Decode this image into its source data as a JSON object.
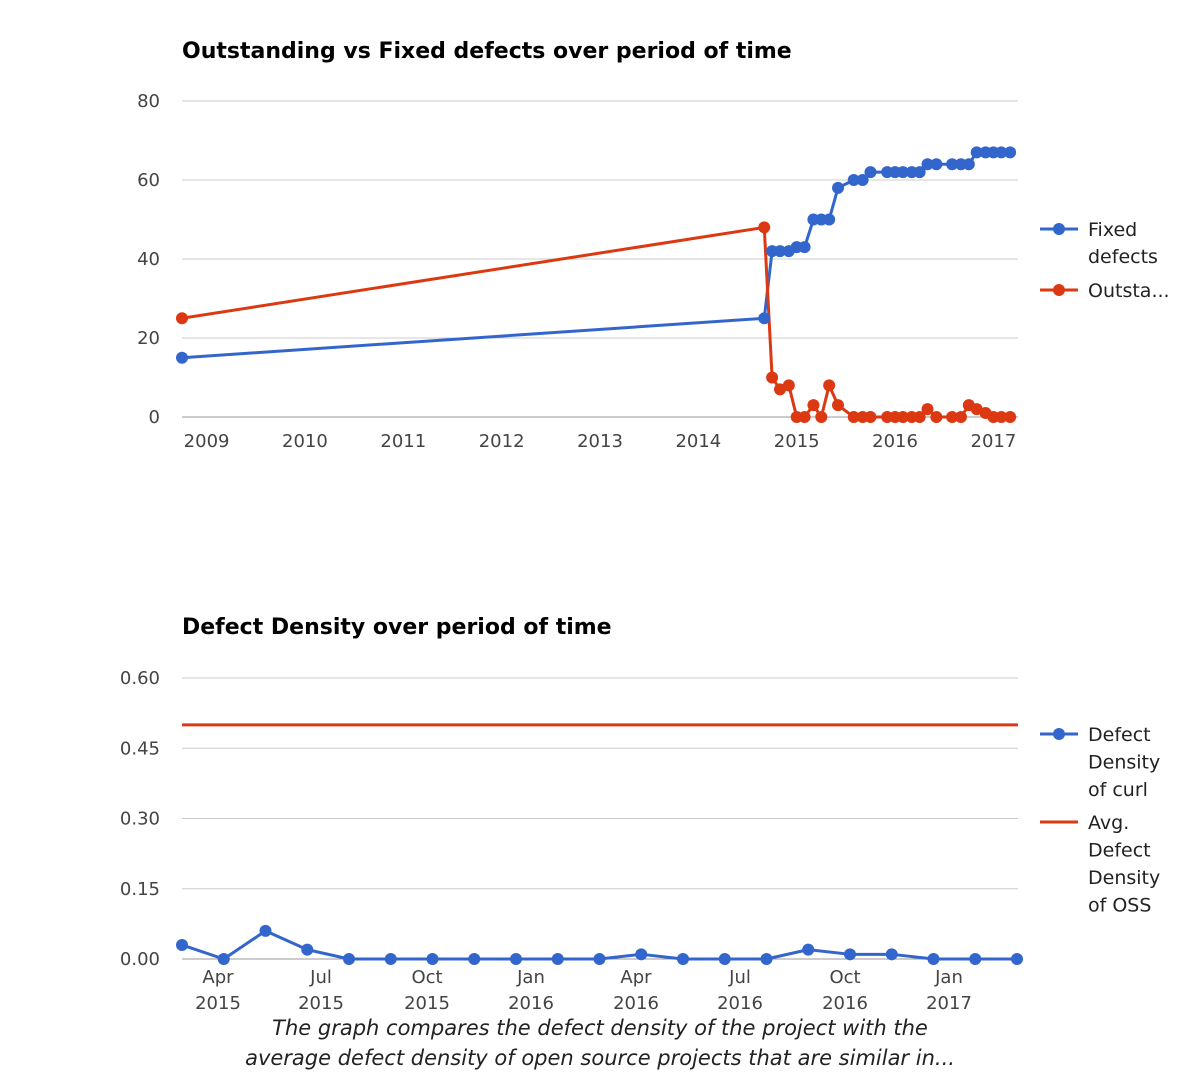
{
  "chart_data": [
    {
      "type": "line",
      "title": "Outstanding vs Fixed defects over period of time",
      "ylim": [
        0,
        80
      ],
      "yticks": [
        "0",
        "20",
        "40",
        "60",
        "80"
      ],
      "xrange": [
        2008.75,
        2017.25
      ],
      "xticks": [
        "2009",
        "2010",
        "2011",
        "2012",
        "2013",
        "2014",
        "2015",
        "2016",
        "2017"
      ],
      "series": [
        {
          "name": "Fixed defects",
          "color": "#3366cc",
          "points": [
            [
              2008.75,
              15
            ],
            [
              2014.67,
              25
            ],
            [
              2014.75,
              42
            ],
            [
              2014.83,
              42
            ],
            [
              2014.92,
              42
            ],
            [
              2015.0,
              43
            ],
            [
              2015.08,
              43
            ],
            [
              2015.17,
              50
            ],
            [
              2015.25,
              50
            ],
            [
              2015.33,
              50
            ],
            [
              2015.42,
              58
            ],
            [
              2015.58,
              60
            ],
            [
              2015.67,
              60
            ],
            [
              2015.75,
              62
            ],
            [
              2015.92,
              62
            ],
            [
              2016.0,
              62
            ],
            [
              2016.08,
              62
            ],
            [
              2016.17,
              62
            ],
            [
              2016.25,
              62
            ],
            [
              2016.33,
              64
            ],
            [
              2016.42,
              64
            ],
            [
              2016.58,
              64
            ],
            [
              2016.67,
              64
            ],
            [
              2016.75,
              64
            ],
            [
              2016.83,
              67
            ],
            [
              2016.92,
              67
            ],
            [
              2017.0,
              67
            ],
            [
              2017.08,
              67
            ],
            [
              2017.17,
              67
            ]
          ]
        },
        {
          "name": "Outstanding defects",
          "legend_label": "Outsta...",
          "color": "#dc3912",
          "points": [
            [
              2008.75,
              25
            ],
            [
              2014.67,
              48
            ],
            [
              2014.75,
              10
            ],
            [
              2014.83,
              7
            ],
            [
              2014.92,
              8
            ],
            [
              2015.0,
              0
            ],
            [
              2015.08,
              0
            ],
            [
              2015.17,
              3
            ],
            [
              2015.25,
              0
            ],
            [
              2015.33,
              8
            ],
            [
              2015.42,
              3
            ],
            [
              2015.58,
              0
            ],
            [
              2015.67,
              0
            ],
            [
              2015.75,
              0
            ],
            [
              2015.92,
              0
            ],
            [
              2016.0,
              0
            ],
            [
              2016.08,
              0
            ],
            [
              2016.17,
              0
            ],
            [
              2016.25,
              0
            ],
            [
              2016.33,
              2
            ],
            [
              2016.42,
              0
            ],
            [
              2016.58,
              0
            ],
            [
              2016.67,
              0
            ],
            [
              2016.75,
              3
            ],
            [
              2016.83,
              2
            ],
            [
              2016.92,
              1
            ],
            [
              2017.0,
              0
            ],
            [
              2017.08,
              0
            ],
            [
              2017.17,
              0
            ]
          ]
        }
      ],
      "legend_lines": [
        [
          "Fixed",
          "defects"
        ],
        [
          "Outsta..."
        ]
      ]
    },
    {
      "type": "line",
      "title": "Defect Density over period of time",
      "ylim": [
        0,
        0.6
      ],
      "yticks": [
        "0.00",
        "0.15",
        "0.30",
        "0.45",
        "0.60"
      ],
      "xtick_labels": [
        [
          "Apr",
          "2015"
        ],
        [
          "Jul",
          "2015"
        ],
        [
          "Oct",
          "2015"
        ],
        [
          "Jan",
          "2016"
        ],
        [
          "Apr",
          "2016"
        ],
        [
          "Jul",
          "2016"
        ],
        [
          "Oct",
          "2016"
        ],
        [
          "Jan",
          "2017"
        ]
      ],
      "series": [
        {
          "name": "Defect Density of curl",
          "color": "#3366cc",
          "values": [
            0.03,
            0.0,
            0.06,
            0.02,
            0.0,
            0.0,
            0.0,
            0.0,
            0.0,
            0.0,
            0.0,
            0.01,
            0.0,
            0.0,
            0.0,
            0.02,
            0.01,
            0.01,
            0.0,
            0.0,
            0.0
          ]
        },
        {
          "name": "Avg. Defect Density of OSS",
          "color": "#dc3912",
          "value": 0.5
        }
      ],
      "legend_lines": [
        [
          "Defect",
          "Density",
          "of curl"
        ],
        [
          "Avg.",
          "Defect",
          "Density",
          "of OSS"
        ]
      ],
      "caption_lines": [
        "The graph compares the defect density of the project with the",
        "average defect density of open source projects that are similar in..."
      ]
    }
  ]
}
